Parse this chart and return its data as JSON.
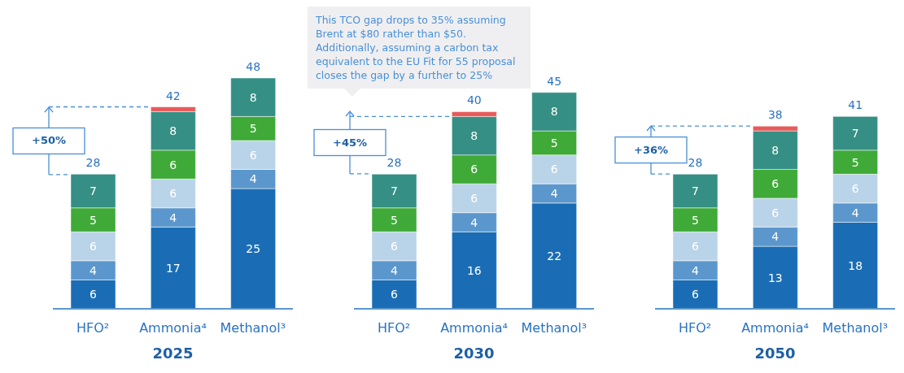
{
  "chart_data": [
    {
      "type": "bar",
      "title": "2025",
      "stacked": true,
      "categories": [
        "HFO²",
        "Ammonia⁴",
        "Methanol³"
      ],
      "series": [
        {
          "color": "#1a6db5",
          "values": [
            6,
            17,
            25
          ],
          "value_labels": [
            "6",
            "17",
            "25"
          ]
        },
        {
          "color": "#5b97cc",
          "values": [
            4,
            4,
            4
          ],
          "value_labels": [
            "4",
            "4",
            "4"
          ]
        },
        {
          "color": "#b9d3e8",
          "values": [
            6,
            6,
            6
          ],
          "value_labels": [
            "6",
            "6",
            "6"
          ]
        },
        {
          "color": "#3faa37",
          "values": [
            5,
            6,
            5
          ],
          "value_labels": [
            "5",
            "6",
            "5"
          ]
        },
        {
          "color": "#358f84",
          "values": [
            7,
            8,
            8
          ],
          "value_labels": [
            "7",
            "8",
            "8"
          ]
        },
        {
          "color": "#e85a5a",
          "values": [
            null,
            1,
            null
          ],
          "value_labels": [
            null,
            null,
            null
          ]
        }
      ],
      "totals": [
        "28",
        "42",
        "48"
      ],
      "annotations": [
        "+50%"
      ],
      "ref_lines": [
        {
          "axis": "y",
          "value": 42,
          "color": "#4a8fd6",
          "line_style": "dashed"
        }
      ]
    },
    {
      "type": "bar",
      "title": "2030",
      "stacked": true,
      "categories": [
        "HFO²",
        "Ammonia⁴",
        "Methanol³"
      ],
      "series": [
        {
          "color": "#1a6db5",
          "values": [
            6,
            16,
            22
          ],
          "value_labels": [
            "6",
            "16",
            "22"
          ]
        },
        {
          "color": "#5b97cc",
          "values": [
            4,
            4,
            4
          ],
          "value_labels": [
            "4",
            "4",
            "4"
          ]
        },
        {
          "color": "#b9d3e8",
          "values": [
            6,
            6,
            6
          ],
          "value_labels": [
            "6",
            "6",
            "6"
          ]
        },
        {
          "color": "#3faa37",
          "values": [
            5,
            6,
            5
          ],
          "value_labels": [
            "5",
            "6",
            "5"
          ]
        },
        {
          "color": "#358f84",
          "values": [
            7,
            8,
            8
          ],
          "value_labels": [
            "7",
            "8",
            "8"
          ]
        },
        {
          "color": "#e85a5a",
          "values": [
            null,
            1,
            null
          ],
          "value_labels": [
            null,
            null,
            null
          ]
        }
      ],
      "totals": [
        "28",
        "40",
        "45"
      ],
      "ref_lines": [
        {
          "axis": "y",
          "value": 40,
          "color": "#4a8fd6",
          "line_style": "dashed"
        }
      ],
      "annotations": [
        "+45%",
        "This TCO gap drops to 35% assuming Brent at $80 rather than $50. Additionally, assuming a carbon tax equivalent to the EU Fit for 55 proposal closes the gap by a further to 25%"
      ]
    },
    {
      "type": "bar",
      "title": "2050",
      "stacked": true,
      "categories": [
        "HFO²",
        "Ammonia⁴",
        "Methanol³"
      ],
      "series": [
        {
          "color": "#1a6db5",
          "values": [
            6,
            13,
            18
          ],
          "value_labels": [
            "6",
            "13",
            "18"
          ]
        },
        {
          "color": "#5b97cc",
          "values": [
            4,
            4,
            4
          ],
          "value_labels": [
            "4",
            "4",
            "4"
          ]
        },
        {
          "color": "#b9d3e8",
          "values": [
            6,
            6,
            6
          ],
          "value_labels": [
            "6",
            "6",
            "6"
          ]
        },
        {
          "color": "#3faa37",
          "values": [
            5,
            6,
            5
          ],
          "value_labels": [
            "5",
            "6",
            "5"
          ]
        },
        {
          "color": "#358f84",
          "values": [
            7,
            8,
            7
          ],
          "value_labels": [
            "7",
            "8",
            "7"
          ]
        },
        {
          "color": "#e85a5a",
          "values": [
            null,
            1,
            null
          ],
          "value_labels": [
            null,
            null,
            null
          ]
        }
      ],
      "totals": [
        "28",
        "38",
        "41"
      ],
      "annotations": [
        "+36%"
      ],
      "ref_lines": [
        {
          "axis": "y",
          "value": 38,
          "color": "#4a8fd6",
          "line_style": "dashed"
        }
      ]
    }
  ]
}
